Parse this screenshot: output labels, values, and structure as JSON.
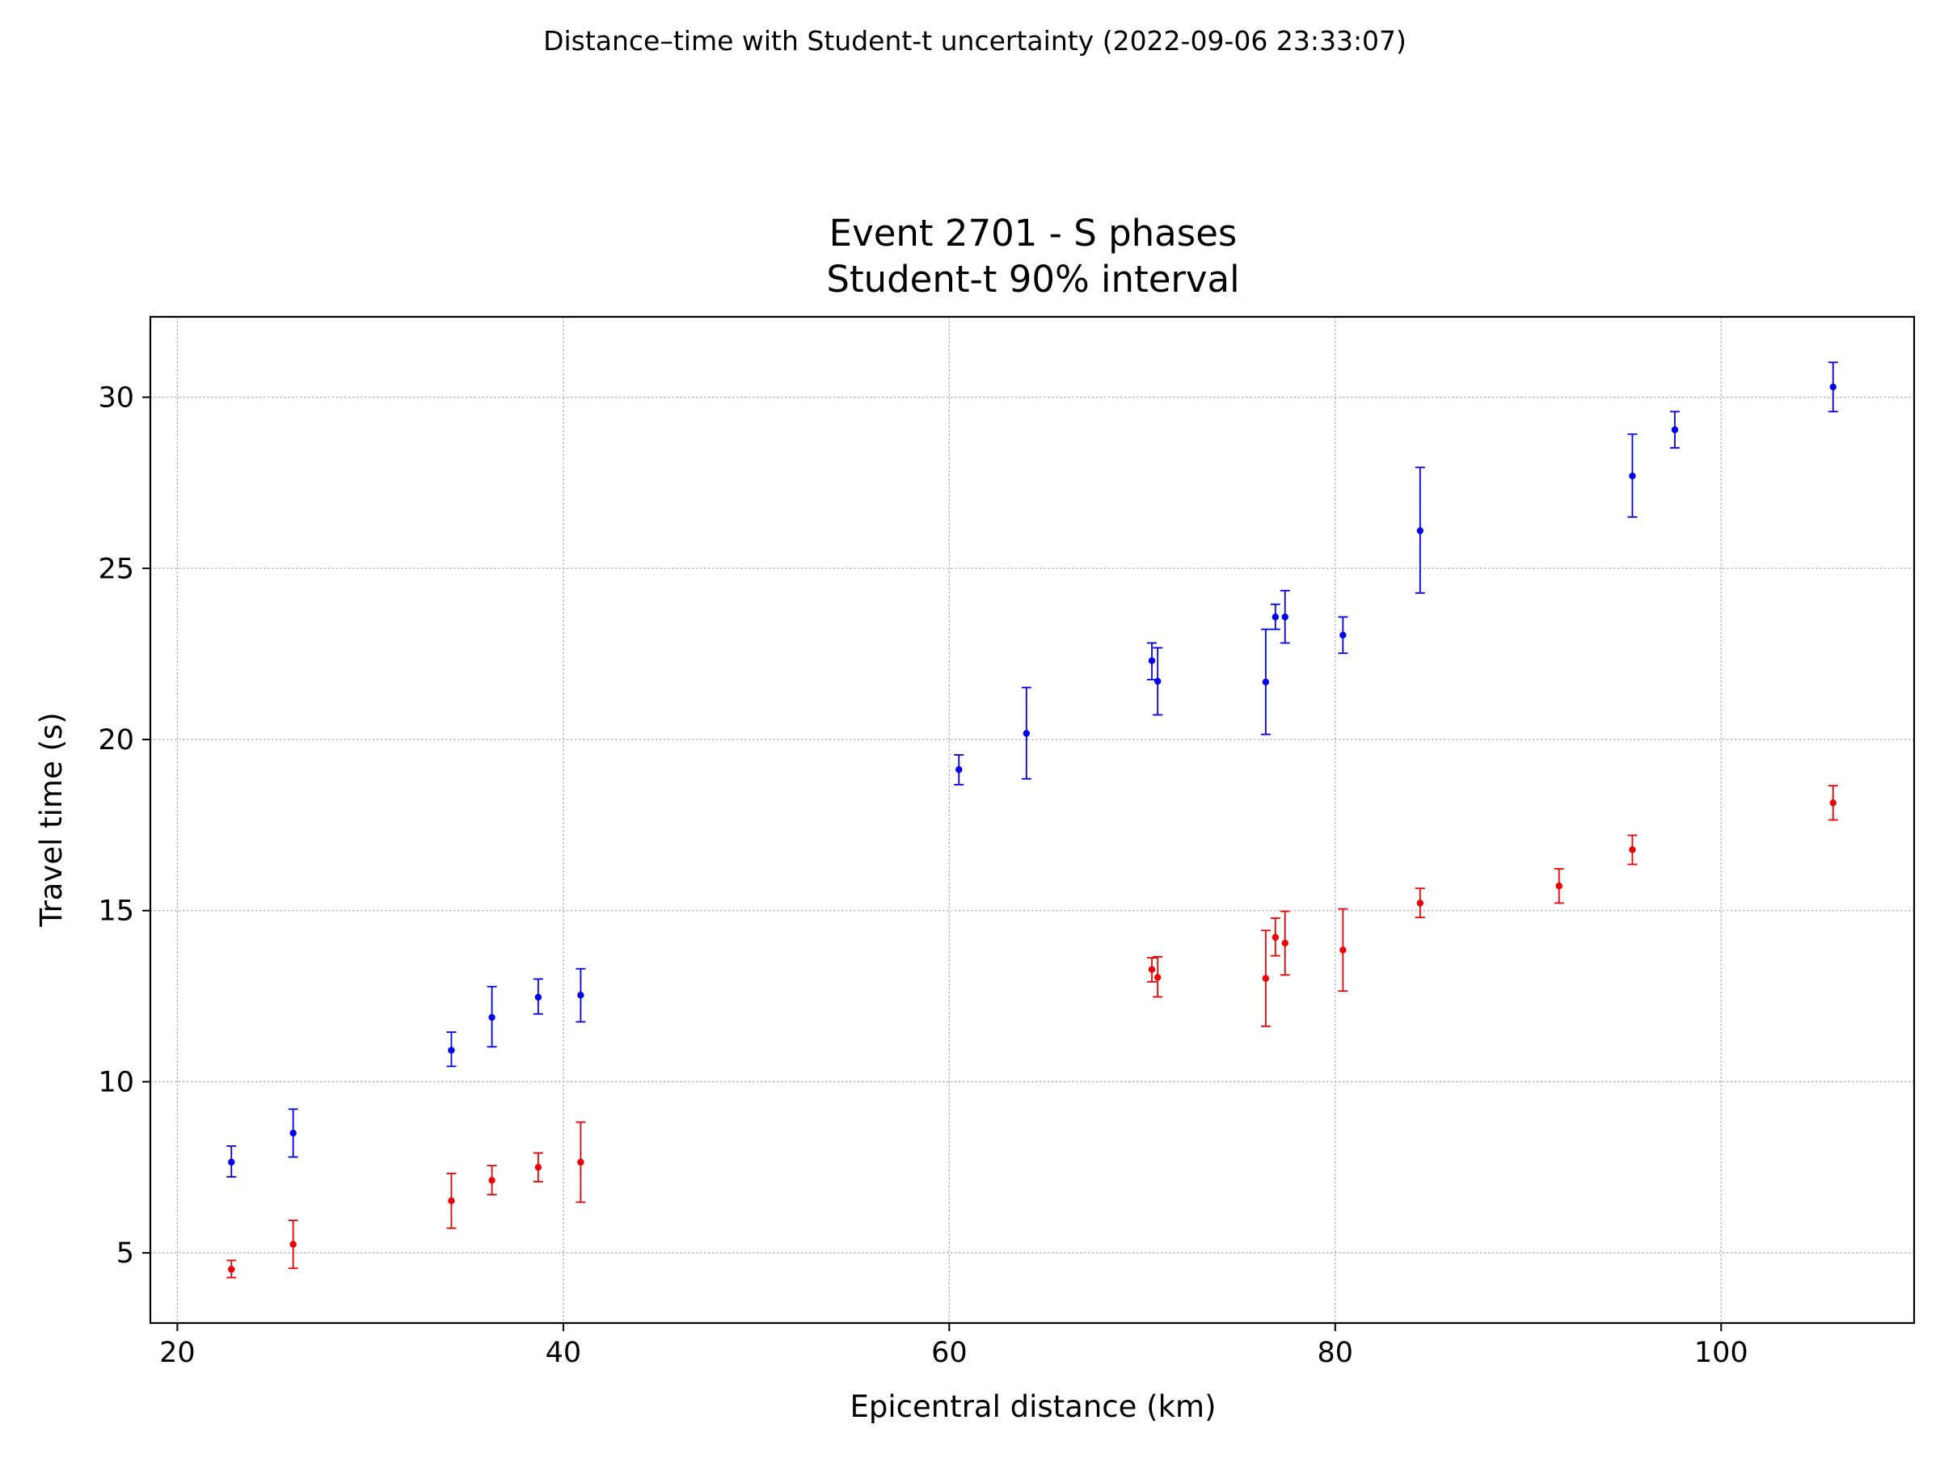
{
  "suptitle": "Distance–time with Student-t uncertainty (2022-09-06 23:33:07)",
  "chart_data": {
    "type": "scatter",
    "title_line1": "Event 2701 - S phases",
    "title_line2": "Student-t 90% interval",
    "xlabel": "Epicentral distance (km)",
    "ylabel": "Travel time (s)",
    "xlim": [
      18.6,
      110.0
    ],
    "ylim": [
      2.95,
      32.35
    ],
    "xticks": [
      20,
      40,
      60,
      80,
      100
    ],
    "yticks": [
      5,
      10,
      15,
      20,
      25,
      30
    ],
    "grid": true,
    "colors": {
      "series_blue": "#0000ee",
      "series_red": "#ee0000",
      "grid": "#b0b0b0",
      "axes": "#000000"
    },
    "series": [
      {
        "name": "blue",
        "color": "#0000ee",
        "points": [
          {
            "x": 22.8,
            "y": 7.65,
            "lo": 7.22,
            "hi": 8.12
          },
          {
            "x": 26.0,
            "y": 8.5,
            "lo": 7.8,
            "hi": 9.2
          },
          {
            "x": 34.2,
            "y": 10.92,
            "lo": 10.45,
            "hi": 11.45
          },
          {
            "x": 36.3,
            "y": 11.88,
            "lo": 11.02,
            "hi": 12.78
          },
          {
            "x": 38.7,
            "y": 12.47,
            "lo": 11.98,
            "hi": 13.0
          },
          {
            "x": 40.9,
            "y": 12.53,
            "lo": 11.75,
            "hi": 13.3
          },
          {
            "x": 60.5,
            "y": 19.12,
            "lo": 18.68,
            "hi": 19.55
          },
          {
            "x": 64.0,
            "y": 20.18,
            "lo": 18.85,
            "hi": 21.52
          },
          {
            "x": 70.5,
            "y": 22.3,
            "lo": 21.75,
            "hi": 22.82
          },
          {
            "x": 70.8,
            "y": 21.7,
            "lo": 20.72,
            "hi": 22.68
          },
          {
            "x": 76.4,
            "y": 21.68,
            "lo": 20.15,
            "hi": 23.22
          },
          {
            "x": 76.9,
            "y": 23.58,
            "lo": 23.22,
            "hi": 23.95
          },
          {
            "x": 77.4,
            "y": 23.58,
            "lo": 22.82,
            "hi": 24.35
          },
          {
            "x": 80.4,
            "y": 23.05,
            "lo": 22.52,
            "hi": 23.58
          },
          {
            "x": 84.4,
            "y": 26.1,
            "lo": 24.28,
            "hi": 27.95
          },
          {
            "x": 95.4,
            "y": 27.7,
            "lo": 26.5,
            "hi": 28.92
          },
          {
            "x": 97.6,
            "y": 29.05,
            "lo": 28.52,
            "hi": 29.58
          },
          {
            "x": 105.8,
            "y": 30.3,
            "lo": 29.58,
            "hi": 31.02
          }
        ]
      },
      {
        "name": "red",
        "color": "#ee0000",
        "points": [
          {
            "x": 22.8,
            "y": 4.52,
            "lo": 4.28,
            "hi": 4.78
          },
          {
            "x": 26.0,
            "y": 5.25,
            "lo": 4.55,
            "hi": 5.95
          },
          {
            "x": 34.2,
            "y": 6.52,
            "lo": 5.72,
            "hi": 7.32
          },
          {
            "x": 36.3,
            "y": 7.12,
            "lo": 6.7,
            "hi": 7.55
          },
          {
            "x": 38.7,
            "y": 7.5,
            "lo": 7.08,
            "hi": 7.92
          },
          {
            "x": 40.9,
            "y": 7.65,
            "lo": 6.48,
            "hi": 8.82
          },
          {
            "x": 70.5,
            "y": 13.28,
            "lo": 12.92,
            "hi": 13.62
          },
          {
            "x": 70.8,
            "y": 13.05,
            "lo": 12.48,
            "hi": 13.65
          },
          {
            "x": 76.4,
            "y": 13.02,
            "lo": 11.62,
            "hi": 14.42
          },
          {
            "x": 76.9,
            "y": 14.22,
            "lo": 13.68,
            "hi": 14.78
          },
          {
            "x": 77.4,
            "y": 14.05,
            "lo": 13.12,
            "hi": 14.98
          },
          {
            "x": 80.4,
            "y": 13.85,
            "lo": 12.65,
            "hi": 15.05
          },
          {
            "x": 84.4,
            "y": 15.22,
            "lo": 14.8,
            "hi": 15.65
          },
          {
            "x": 91.6,
            "y": 15.72,
            "lo": 15.22,
            "hi": 16.22
          },
          {
            "x": 95.4,
            "y": 16.78,
            "lo": 16.35,
            "hi": 17.2
          },
          {
            "x": 105.8,
            "y": 18.15,
            "lo": 17.65,
            "hi": 18.65
          }
        ]
      }
    ]
  }
}
